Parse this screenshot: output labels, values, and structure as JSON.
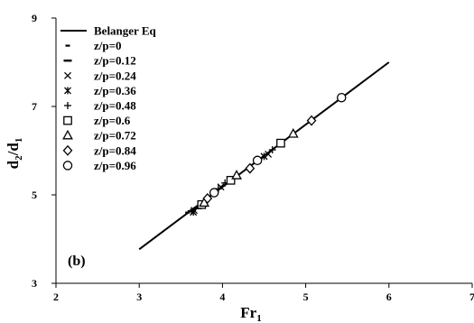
{
  "chart_data": {
    "type": "scatter",
    "title": "",
    "panel_label": "(b)",
    "xlabel": "Fr",
    "xlabel_sub": "1",
    "ylabel": "d",
    "ylabel_sub_num": "2",
    "ylabel_den": "d",
    "ylabel_sub_den": "1",
    "xlim": [
      2,
      7
    ],
    "ylim": [
      3,
      9
    ],
    "xticks": [
      2,
      3,
      4,
      5,
      6,
      7
    ],
    "yticks": [
      3,
      5,
      7,
      9
    ],
    "grid": false,
    "legend_position": "top-left",
    "line": {
      "name": "Belanger Eq",
      "x": [
        3.0,
        6.0
      ],
      "y": [
        3.77,
        8.0
      ]
    },
    "series": [
      {
        "name": "z/p=0",
        "marker": "dash-small",
        "points": [
          [
            3.58,
            4.6
          ],
          [
            3.64,
            4.66
          ]
        ]
      },
      {
        "name": "z/p=0.12",
        "marker": "dash",
        "points": [
          [
            3.63,
            4.63
          ],
          [
            3.7,
            4.7
          ]
        ]
      },
      {
        "name": "z/p=0.24",
        "marker": "x",
        "points": [
          [
            3.66,
            4.65
          ],
          [
            3.98,
            5.18
          ],
          [
            4.55,
            5.92
          ]
        ]
      },
      {
        "name": "z/p=0.36",
        "marker": "star",
        "points": [
          [
            3.65,
            4.61
          ],
          [
            4.5,
            5.87
          ]
        ]
      },
      {
        "name": "z/p=0.48",
        "marker": "plus",
        "points": [
          [
            3.95,
            5.14
          ],
          [
            4.03,
            5.27
          ],
          [
            4.6,
            6.02
          ]
        ]
      },
      {
        "name": "z/p=0.6",
        "marker": "square",
        "points": [
          [
            3.75,
            4.78
          ],
          [
            4.1,
            5.33
          ],
          [
            4.7,
            6.17
          ]
        ]
      },
      {
        "name": "z/p=0.72",
        "marker": "triangle",
        "points": [
          [
            3.78,
            4.82
          ],
          [
            4.17,
            5.44
          ],
          [
            4.85,
            6.38
          ]
        ]
      },
      {
        "name": "z/p=0.84",
        "marker": "diamond",
        "points": [
          [
            3.82,
            4.92
          ],
          [
            4.33,
            5.6
          ],
          [
            5.07,
            6.68
          ]
        ]
      },
      {
        "name": "z/p=0.96",
        "marker": "circle",
        "points": [
          [
            3.9,
            5.05
          ],
          [
            4.42,
            5.78
          ],
          [
            5.43,
            7.2
          ]
        ]
      }
    ]
  }
}
